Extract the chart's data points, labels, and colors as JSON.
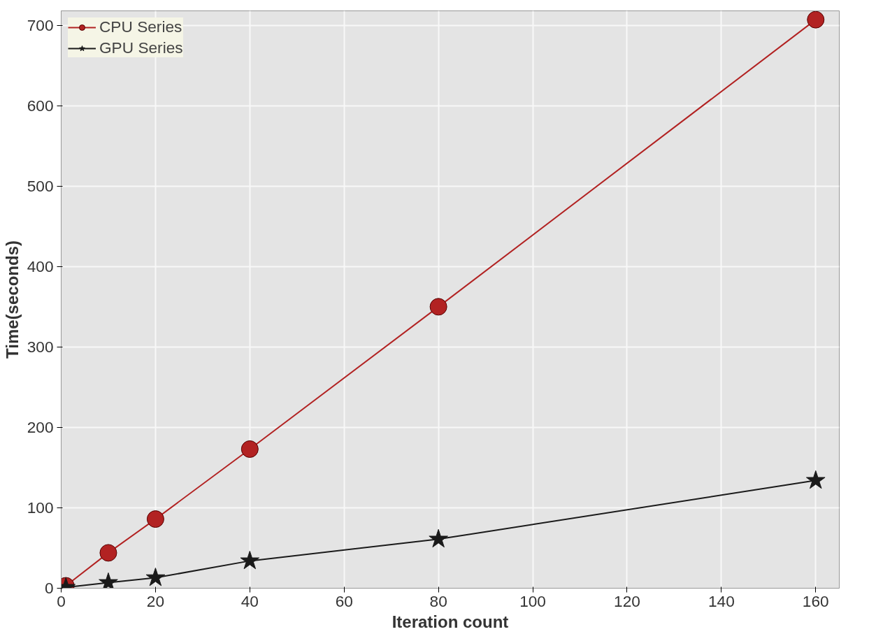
{
  "chart_data": {
    "type": "line",
    "xlabel": "Iteration count",
    "ylabel": "Time(seconds)",
    "xlim": [
      0,
      165
    ],
    "ylim": [
      0,
      718
    ],
    "xticks": [
      0,
      20,
      40,
      60,
      80,
      100,
      120,
      140,
      160
    ],
    "yticks": [
      0,
      100,
      200,
      300,
      400,
      500,
      600,
      700
    ],
    "grid": true,
    "legend": "top left",
    "series": [
      {
        "name": "CPU Series",
        "color": "#b22222",
        "marker": "circle",
        "x": [
          1,
          10,
          20,
          40,
          80,
          160
        ],
        "values": [
          3,
          44,
          86,
          173,
          350,
          707
        ]
      },
      {
        "name": "GPU Series",
        "color": "#1a1a1a",
        "marker": "star",
        "x": [
          1,
          10,
          20,
          40,
          80,
          160
        ],
        "values": [
          1,
          7,
          13,
          34,
          61,
          134
        ]
      }
    ]
  }
}
